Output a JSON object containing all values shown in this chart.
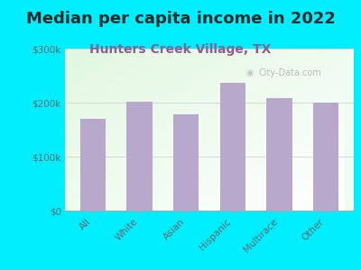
{
  "title": "Median per capita income in 2022",
  "subtitle": "Hunters Creek Village, TX",
  "categories": [
    "All",
    "White",
    "Asian",
    "Hispanic",
    "Multirace",
    "Other"
  ],
  "values": [
    170000,
    202000,
    178000,
    237000,
    208000,
    200000
  ],
  "bar_color": "#b8a8cc",
  "background_outer": "#00eeff",
  "ylim": [
    0,
    300000
  ],
  "yticks": [
    0,
    100000,
    200000,
    300000
  ],
  "ytick_labels": [
    "$0",
    "$100k",
    "$200k",
    "$300k"
  ],
  "title_fontsize": 13,
  "subtitle_fontsize": 10,
  "title_color": "#2a2a2a",
  "subtitle_color": "#8b6090",
  "tick_color": "#666666",
  "watermark": "City-Data.com"
}
